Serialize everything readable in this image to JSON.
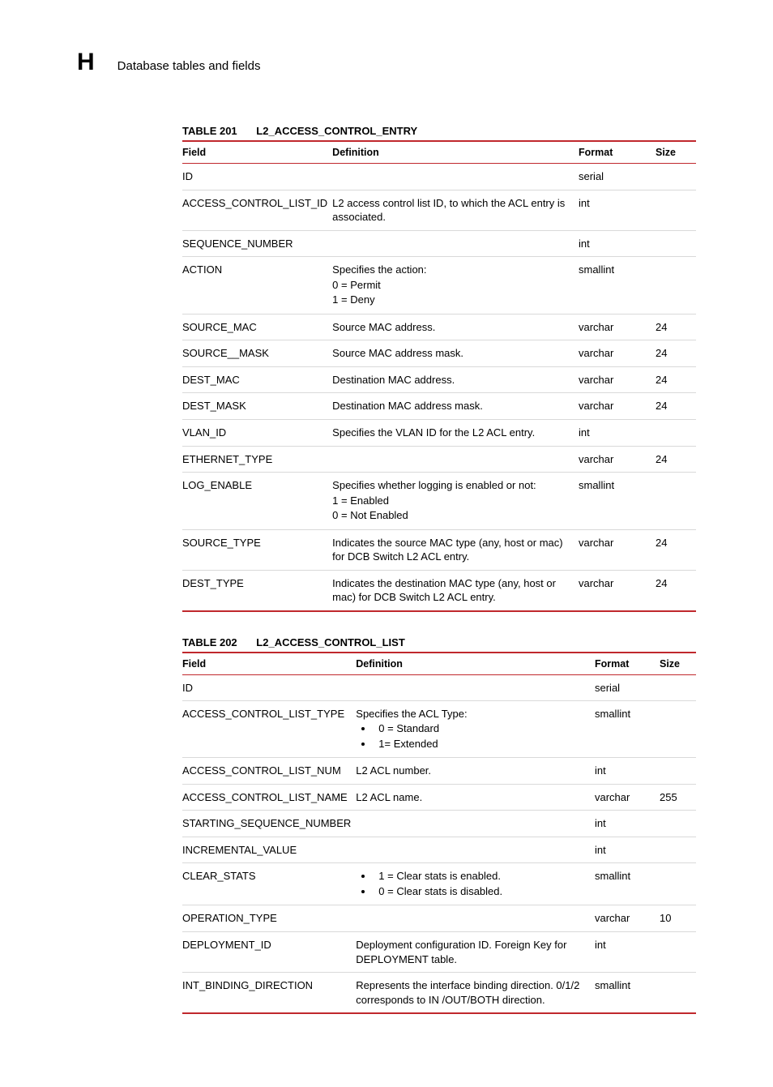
{
  "header": {
    "appendix_letter": "H",
    "title": "Database tables and fields"
  },
  "tables": {
    "t201": {
      "caption_num": "TABLE 201",
      "caption_name": "L2_ACCESS_CONTROL_ENTRY",
      "columns": {
        "field": "Field",
        "definition": "Definition",
        "format": "Format",
        "size": "Size"
      },
      "rows": [
        {
          "field": "ID",
          "definition": {
            "kind": "text",
            "text": ""
          },
          "format": "serial",
          "size": ""
        },
        {
          "field": "ACCESS_CONTROL_LIST_ID",
          "definition": {
            "kind": "text",
            "text": "L2 access control list ID, to which the ACL entry is associated."
          },
          "format": "int",
          "size": ""
        },
        {
          "field": "SEQUENCE_NUMBER",
          "definition": {
            "kind": "text",
            "text": ""
          },
          "format": "int",
          "size": ""
        },
        {
          "field": "ACTION",
          "definition": {
            "kind": "lines",
            "lines": [
              "Specifies the action:",
              "0 = Permit",
              "1 = Deny"
            ]
          },
          "format": "smallint",
          "size": ""
        },
        {
          "field": "SOURCE_MAC",
          "definition": {
            "kind": "text",
            "text": "Source MAC address."
          },
          "format": "varchar",
          "size": "24"
        },
        {
          "field": "SOURCE__MASK",
          "definition": {
            "kind": "text",
            "text": "Source MAC address mask."
          },
          "format": "varchar",
          "size": "24"
        },
        {
          "field": "DEST_MAC",
          "definition": {
            "kind": "text",
            "text": "Destination MAC address."
          },
          "format": "varchar",
          "size": "24"
        },
        {
          "field": "DEST_MASK",
          "definition": {
            "kind": "text",
            "text": "Destination MAC address mask."
          },
          "format": "varchar",
          "size": "24"
        },
        {
          "field": "VLAN_ID",
          "definition": {
            "kind": "text",
            "text": "Specifies the VLAN ID for the L2 ACL entry."
          },
          "format": "int",
          "size": ""
        },
        {
          "field": "ETHERNET_TYPE",
          "definition": {
            "kind": "text",
            "text": ""
          },
          "format": "varchar",
          "size": "24"
        },
        {
          "field": "LOG_ENABLE",
          "definition": {
            "kind": "lines",
            "lines": [
              "Specifies whether logging is enabled or not:",
              "1 = Enabled",
              "0 = Not Enabled"
            ]
          },
          "format": "smallint",
          "size": ""
        },
        {
          "field": "SOURCE_TYPE",
          "definition": {
            "kind": "text",
            "text": "Indicates the source MAC type (any, host or mac) for DCB Switch L2 ACL entry."
          },
          "format": "varchar",
          "size": "24"
        },
        {
          "field": "DEST_TYPE",
          "definition": {
            "kind": "text",
            "text": "Indicates the destination MAC type (any, host or mac) for DCB Switch L2 ACL entry."
          },
          "format": "varchar",
          "size": "24"
        }
      ]
    },
    "t202": {
      "caption_num": "TABLE 202",
      "caption_name": "L2_ACCESS_CONTROL_LIST",
      "columns": {
        "field": "Field",
        "definition": "Definition",
        "format": "Format",
        "size": "Size"
      },
      "rows": [
        {
          "field": "ID",
          "definition": {
            "kind": "text",
            "text": ""
          },
          "format": "serial",
          "size": ""
        },
        {
          "field": "ACCESS_CONTROL_LIST_TYPE",
          "definition": {
            "kind": "lead_bullets",
            "lead": "Specifies the ACL Type:",
            "items": [
              "0 = Standard",
              "1= Extended"
            ]
          },
          "format": "smallint",
          "size": ""
        },
        {
          "field": "ACCESS_CONTROL_LIST_NUM",
          "definition": {
            "kind": "text",
            "text": "L2 ACL number."
          },
          "format": "int",
          "size": ""
        },
        {
          "field": "ACCESS_CONTROL_LIST_NAME",
          "definition": {
            "kind": "text",
            "text": "L2 ACL name."
          },
          "format": "varchar",
          "size": "255"
        },
        {
          "field": "STARTING_SEQUENCE_NUMBER",
          "definition": {
            "kind": "text",
            "text": ""
          },
          "format": "int",
          "size": ""
        },
        {
          "field": "INCREMENTAL_VALUE",
          "definition": {
            "kind": "text",
            "text": ""
          },
          "format": "int",
          "size": ""
        },
        {
          "field": "CLEAR_STATS",
          "definition": {
            "kind": "bullets",
            "items": [
              "1 = Clear stats is enabled.",
              "0 = Clear stats is disabled."
            ]
          },
          "format": "smallint",
          "size": ""
        },
        {
          "field": "OPERATION_TYPE",
          "definition": {
            "kind": "text",
            "text": ""
          },
          "format": "varchar",
          "size": "10"
        },
        {
          "field": "DEPLOYMENT_ID",
          "definition": {
            "kind": "text",
            "text": "Deployment configuration ID. Foreign Key for DEPLOYMENT table."
          },
          "format": "int",
          "size": ""
        },
        {
          "field": "INT_BINDING_DIRECTION",
          "definition": {
            "kind": "text",
            "text": "Represents the interface binding direction. 0/1/2 corresponds to IN /OUT/BOTH direction."
          },
          "format": "smallint",
          "size": ""
        }
      ]
    }
  }
}
